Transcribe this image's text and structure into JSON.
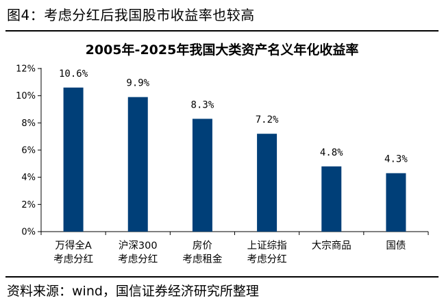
{
  "figure": {
    "caption": "图4：考虑分红后我国股市收益率也较高",
    "source": "资料来源：wind，国信证券经济研究所整理"
  },
  "chart_data": {
    "type": "bar",
    "title": "2005年-2025年我国大类资产名义年化收益率",
    "categories": [
      [
        "万得全A",
        "考虑分红"
      ],
      [
        "沪深300",
        "考虑分红"
      ],
      [
        "房价",
        "考虑租金"
      ],
      [
        "上证综指",
        "考虑分红"
      ],
      [
        "大宗商品"
      ],
      [
        "国债"
      ]
    ],
    "values": [
      10.6,
      9.9,
      8.3,
      7.2,
      4.8,
      4.3
    ],
    "value_labels": [
      "10.6%",
      "9.9%",
      "8.3%",
      "7.2%",
      "4.8%",
      "4.3%"
    ],
    "y_ticks": [
      0,
      2,
      4,
      6,
      8,
      10,
      12
    ],
    "y_tick_labels": [
      "0%",
      "2%",
      "4%",
      "6%",
      "8%",
      "10%",
      "12%"
    ],
    "ylim": [
      0,
      12
    ],
    "bar_color": "#003f78",
    "grid": false,
    "legend": "none"
  }
}
